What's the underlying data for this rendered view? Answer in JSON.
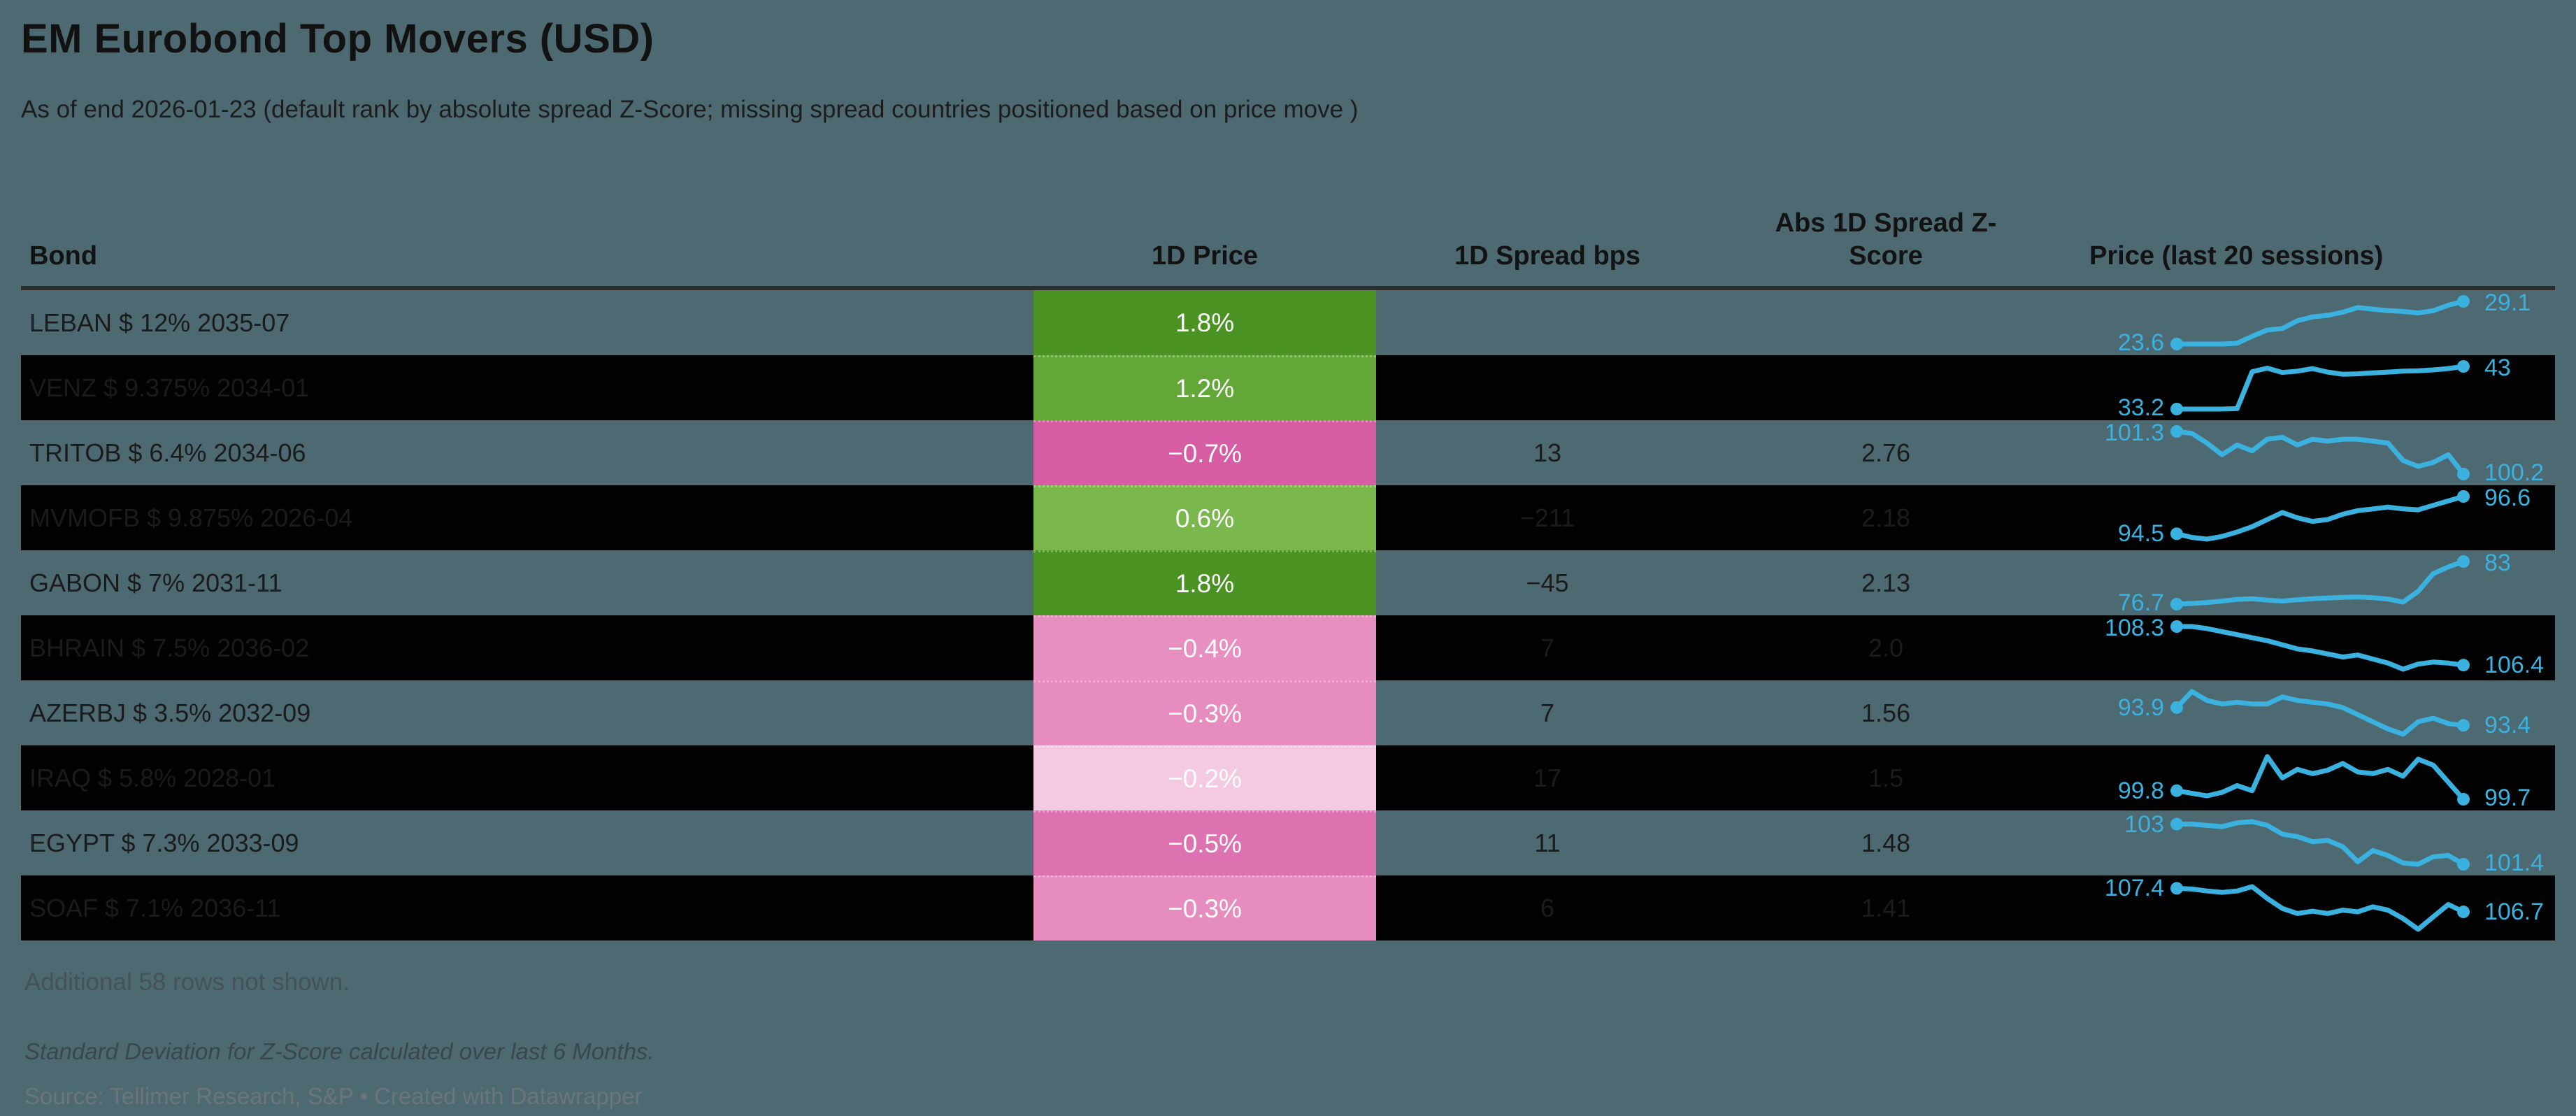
{
  "footer": {
    "additional": "Additional 58 rows not shown.",
    "note": "Standard Deviation for Z-Score calculated over last 6 Months.",
    "source": "Source: Tellimer Research, S&P • Created with Datawrapper"
  },
  "colors": {
    "background": "#4d6971",
    "row_dark": "#020202",
    "header_rule": "#2d2d2d",
    "spark_line": "#3ab1de",
    "positive_strong_green": "#4a9222",
    "negative_strong_pink": "#d65ca3"
  },
  "chart_data": {
    "type": "table",
    "title": "EM Eurobond Top Movers (USD)",
    "subtitle": "As of end 2026-01-23 (default rank by absolute spread Z-Score; missing spread countries positioned based on price move )",
    "columns": [
      "Bond",
      "1D Price",
      "1D Spread bps",
      "Abs 1D Spread Z-Score",
      "Price (last 20 sessions)"
    ],
    "sparkline_sessions": 20,
    "rows": [
      {
        "bond": "LEBAN $ 12% 2035-07",
        "price": "1.8%",
        "price_bg": "#4a9222",
        "spread": "",
        "zscore": "",
        "spark": {
          "start": "23.6",
          "end": "29.1",
          "points": [
            23.6,
            23.6,
            23.6,
            23.6,
            23.7,
            24.6,
            25.4,
            25.6,
            26.6,
            27.1,
            27.3,
            27.7,
            28.3,
            28.1,
            27.9,
            27.8,
            27.6,
            27.9,
            28.6,
            29.1
          ]
        }
      },
      {
        "bond": "VENZ $ 9.375% 2034-01",
        "price": "1.2%",
        "price_bg": "#63a738",
        "spread": "",
        "zscore": "",
        "spark": {
          "start": "33.2",
          "end": "43",
          "points": [
            33.2,
            33.2,
            33.2,
            33.2,
            33.3,
            41.8,
            42.6,
            41.6,
            41.9,
            42.5,
            41.7,
            41.2,
            41.3,
            41.5,
            41.7,
            41.9,
            42.0,
            42.2,
            42.5,
            43.0
          ]
        }
      },
      {
        "bond": "TRITOB $ 6.4% 2034-06",
        "price": "−0.7%",
        "price_bg": "#d65ca3",
        "spread": "13",
        "zscore": "2.76",
        "spark": {
          "start": "101.3",
          "end": "100.2",
          "points": [
            101.3,
            101.25,
            101.0,
            100.7,
            100.95,
            100.8,
            101.1,
            101.15,
            100.95,
            101.1,
            101.05,
            101.1,
            101.1,
            101.05,
            101.0,
            100.55,
            100.4,
            100.5,
            100.7,
            100.2
          ]
        }
      },
      {
        "bond": "MVMOFB $ 9.875% 2026-04",
        "price": "0.6%",
        "price_bg": "#7ab84e",
        "spread": "−211",
        "zscore": "2.18",
        "spark": {
          "start": "94.5",
          "end": "96.6",
          "points": [
            94.5,
            94.3,
            94.2,
            94.35,
            94.6,
            94.9,
            95.3,
            95.7,
            95.4,
            95.2,
            95.3,
            95.6,
            95.8,
            95.9,
            96.0,
            95.9,
            95.85,
            96.1,
            96.35,
            96.6
          ]
        }
      },
      {
        "bond": "GABON $ 7% 2031-11",
        "price": "1.8%",
        "price_bg": "#4a9222",
        "spread": "−45",
        "zscore": "2.13",
        "spark": {
          "start": "76.7",
          "end": "83",
          "points": [
            76.7,
            76.8,
            76.95,
            77.15,
            77.4,
            77.5,
            77.3,
            77.15,
            77.35,
            77.5,
            77.6,
            77.7,
            77.75,
            77.65,
            77.45,
            77.0,
            78.6,
            81.2,
            82.2,
            83.0
          ]
        }
      },
      {
        "bond": "BHRAIN $ 7.5% 2036-02",
        "price": "−0.4%",
        "price_bg": "#e78fc1",
        "spread": "7",
        "zscore": "2.0",
        "spark": {
          "start": "108.3",
          "end": "106.4",
          "points": [
            108.3,
            108.3,
            108.2,
            108.05,
            107.9,
            107.75,
            107.6,
            107.4,
            107.2,
            107.1,
            106.95,
            106.8,
            106.9,
            106.7,
            106.5,
            106.2,
            106.45,
            106.55,
            106.5,
            106.4
          ]
        }
      },
      {
        "bond": "AZERBJ $ 3.5% 2032-09",
        "price": "−0.3%",
        "price_bg": "#e78cbf",
        "spread": "7",
        "zscore": "1.56",
        "spark": {
          "start": "93.9",
          "end": "93.4",
          "points": [
            93.9,
            94.35,
            94.1,
            94.0,
            94.05,
            94.0,
            94.0,
            94.2,
            94.1,
            94.05,
            94.0,
            93.9,
            93.7,
            93.5,
            93.3,
            93.15,
            93.5,
            93.6,
            93.45,
            93.4
          ]
        }
      },
      {
        "bond": "IRAQ $ 5.8% 2028-01",
        "price": "−0.2%",
        "price_bg": "#f3cae1",
        "spread": "17",
        "zscore": "1.5",
        "spark": {
          "start": "99.8",
          "end": "99.7",
          "points": [
            99.8,
            99.77,
            99.74,
            99.78,
            99.86,
            99.8,
            100.2,
            99.95,
            100.05,
            100.0,
            100.04,
            100.12,
            100.02,
            100.0,
            100.05,
            99.97,
            100.17,
            100.1,
            99.9,
            99.7
          ]
        }
      },
      {
        "bond": "EGYPT $ 7.3% 2033-09",
        "price": "−0.5%",
        "price_bg": "#dc73b0",
        "spread": "11",
        "zscore": "1.48",
        "spark": {
          "start": "103",
          "end": "101.4",
          "points": [
            103.0,
            103.0,
            102.95,
            102.9,
            103.05,
            103.1,
            102.95,
            102.6,
            102.5,
            102.3,
            102.35,
            102.1,
            101.5,
            101.95,
            101.75,
            101.45,
            101.4,
            101.7,
            101.75,
            101.4
          ]
        }
      },
      {
        "bond": "SOAF $ 7.1% 2036-11",
        "price": "−0.3%",
        "price_bg": "#e68cbf",
        "spread": "6",
        "zscore": "1.41",
        "spark": {
          "start": "107.4",
          "end": "106.7",
          "points": [
            107.4,
            107.38,
            107.32,
            107.28,
            107.32,
            107.45,
            107.1,
            106.8,
            106.65,
            106.72,
            106.65,
            106.75,
            106.7,
            106.85,
            106.75,
            106.5,
            106.18,
            106.55,
            106.92,
            106.7
          ]
        }
      }
    ]
  }
}
